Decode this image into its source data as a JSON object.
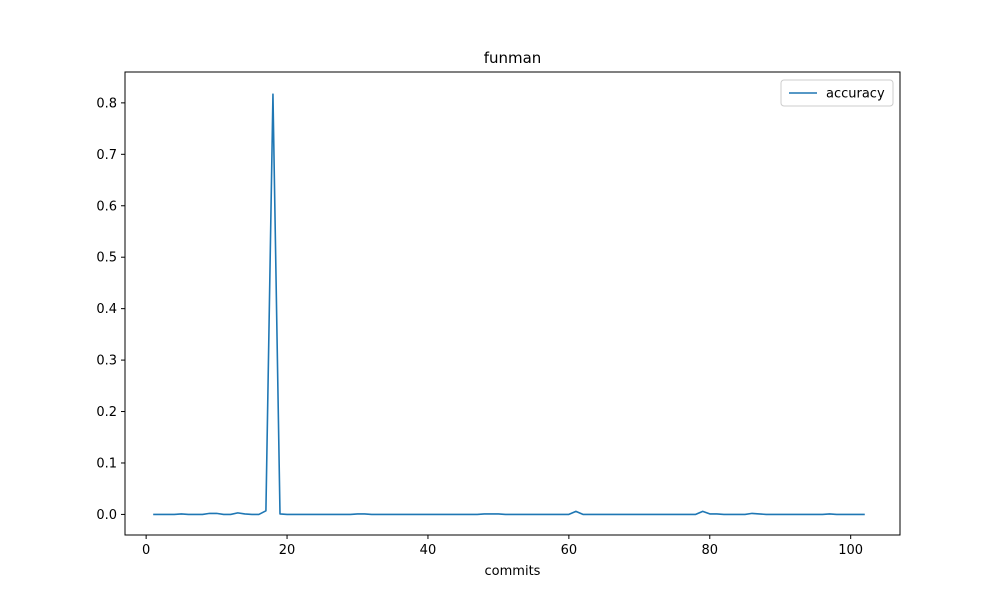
{
  "chart_data": {
    "type": "line",
    "title": "funman",
    "xlabel": "commits",
    "ylabel": "",
    "xlim": [
      -3,
      107
    ],
    "ylim": [
      -0.04,
      0.86
    ],
    "xticks": [
      0,
      20,
      40,
      60,
      80,
      100
    ],
    "yticks": [
      0.0,
      0.1,
      0.2,
      0.3,
      0.4,
      0.5,
      0.6,
      0.7,
      0.8
    ],
    "grid": false,
    "legend_position": "top-right",
    "series": [
      {
        "name": "accuracy",
        "color": "#1f77b4",
        "x": [
          1,
          2,
          3,
          4,
          5,
          6,
          7,
          8,
          9,
          10,
          11,
          12,
          13,
          14,
          15,
          16,
          17,
          18,
          19,
          20,
          21,
          22,
          23,
          24,
          25,
          26,
          27,
          28,
          29,
          30,
          31,
          32,
          33,
          34,
          35,
          36,
          37,
          38,
          39,
          40,
          41,
          42,
          43,
          44,
          45,
          46,
          47,
          48,
          49,
          50,
          51,
          52,
          53,
          54,
          55,
          56,
          57,
          58,
          59,
          60,
          61,
          62,
          63,
          64,
          65,
          66,
          67,
          68,
          69,
          70,
          71,
          72,
          73,
          74,
          75,
          76,
          77,
          78,
          79,
          80,
          81,
          82,
          83,
          84,
          85,
          86,
          87,
          88,
          89,
          90,
          91,
          92,
          93,
          94,
          95,
          96,
          97,
          98,
          99,
          100,
          101,
          102
        ],
        "y": [
          0.0,
          0.0,
          0.0,
          0.0,
          0.001,
          0.0,
          0.0,
          0.0,
          0.002,
          0.002,
          0.0,
          0.0,
          0.003,
          0.001,
          0.0,
          0.0,
          0.007,
          0.817,
          0.001,
          0.0,
          0.0,
          0.0,
          0.0,
          0.0,
          0.0,
          0.0,
          0.0,
          0.0,
          0.0,
          0.001,
          0.001,
          0.0,
          0.0,
          0.0,
          0.0,
          0.0,
          0.0,
          0.0,
          0.0,
          0.0,
          0.0,
          0.0,
          0.0,
          0.0,
          0.0,
          0.0,
          0.0,
          0.001,
          0.001,
          0.001,
          0.0,
          0.0,
          0.0,
          0.0,
          0.0,
          0.0,
          0.0,
          0.0,
          0.0,
          0.0,
          0.006,
          0.0,
          0.0,
          0.0,
          0.0,
          0.0,
          0.0,
          0.0,
          0.0,
          0.0,
          0.0,
          0.0,
          0.0,
          0.0,
          0.0,
          0.0,
          0.0,
          0.0,
          0.006,
          0.001,
          0.001,
          0.0,
          0.0,
          0.0,
          0.0,
          0.002,
          0.001,
          0.0,
          0.0,
          0.0,
          0.0,
          0.0,
          0.0,
          0.0,
          0.0,
          0.0,
          0.001,
          0.0,
          0.0,
          0.0,
          0.0,
          0.0
        ]
      }
    ]
  }
}
